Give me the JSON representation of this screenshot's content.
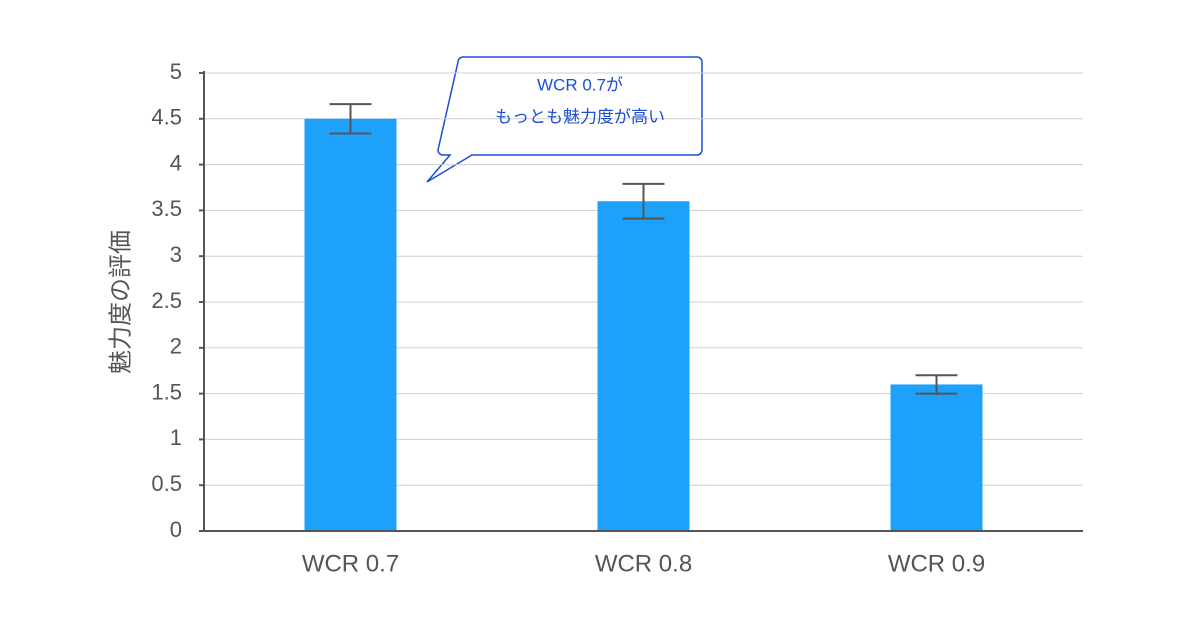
{
  "chart_data": {
    "type": "bar",
    "y_label": "魅力度の評価",
    "categories": [
      "WCR 0.7",
      "WCR 0.8",
      "WCR 0.9"
    ],
    "values": [
      4.5,
      3.6,
      1.6
    ],
    "errors": [
      0.16,
      0.19,
      0.1
    ],
    "color": "#1ea1fa",
    "ylim": [
      0,
      5
    ],
    "yticks": [
      0,
      0.5,
      1,
      1.5,
      2,
      2.5,
      3,
      3.5,
      4,
      4.5,
      5
    ],
    "grid": true,
    "annotation": [
      "WCR 0.7が",
      "もっとも魅力度が高い"
    ]
  }
}
